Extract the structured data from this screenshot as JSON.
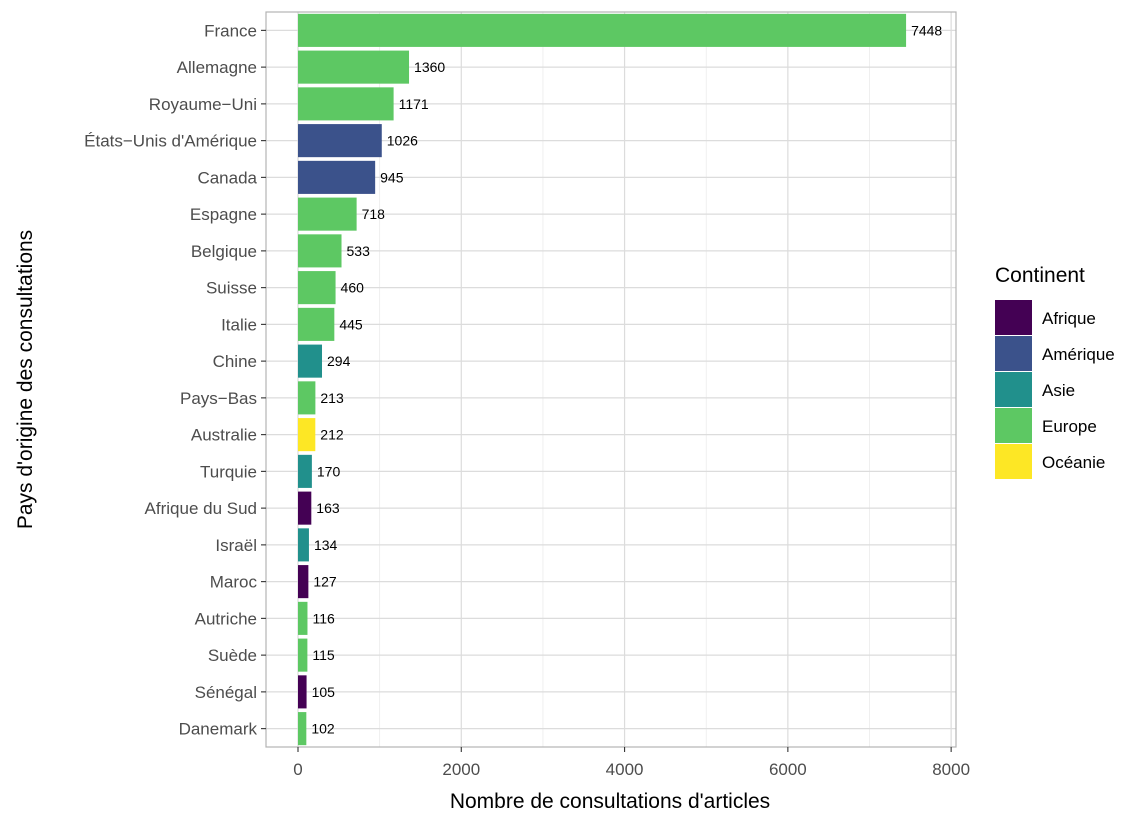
{
  "chart_data": {
    "type": "bar",
    "orientation": "horizontal",
    "title": "",
    "xlabel": "Nombre de consultations d'articles",
    "ylabel": "Pays d'origine des consultations",
    "xlim": [
      0,
      8000
    ],
    "xticks": [
      "0",
      "2000",
      "4000",
      "6000",
      "8000"
    ],
    "grid": true,
    "categories": [
      "France",
      "Allemagne",
      "Royaume−Uni",
      "États−Unis d'Amérique",
      "Canada",
      "Espagne",
      "Belgique",
      "Suisse",
      "Italie",
      "Chine",
      "Pays−Bas",
      "Australie",
      "Turquie",
      "Afrique du Sud",
      "Israël",
      "Maroc",
      "Autriche",
      "Suède",
      "Sénégal",
      "Danemark"
    ],
    "values": [
      7448,
      1360,
      1171,
      1026,
      945,
      718,
      533,
      460,
      445,
      294,
      213,
      212,
      170,
      163,
      134,
      127,
      116,
      115,
      105,
      102
    ],
    "data_labels": [
      "7448",
      "1360",
      "1171",
      "1026",
      "945",
      "718",
      "533",
      "460",
      "445",
      "294",
      "213",
      "212",
      "170",
      "163",
      "134",
      "127",
      "116",
      "115",
      "105",
      "102"
    ],
    "continent": [
      "Europe",
      "Europe",
      "Europe",
      "Amérique",
      "Amérique",
      "Europe",
      "Europe",
      "Europe",
      "Europe",
      "Asie",
      "Europe",
      "Océanie",
      "Asie",
      "Afrique",
      "Asie",
      "Afrique",
      "Europe",
      "Europe",
      "Afrique",
      "Europe"
    ],
    "legend": {
      "title": "Continent",
      "position": "right",
      "items": [
        {
          "label": "Afrique",
          "color": "#440154"
        },
        {
          "label": "Amérique",
          "color": "#3B528B"
        },
        {
          "label": "Asie",
          "color": "#21908C"
        },
        {
          "label": "Europe",
          "color": "#5DC863"
        },
        {
          "label": "Océanie",
          "color": "#FDE725"
        }
      ]
    }
  }
}
